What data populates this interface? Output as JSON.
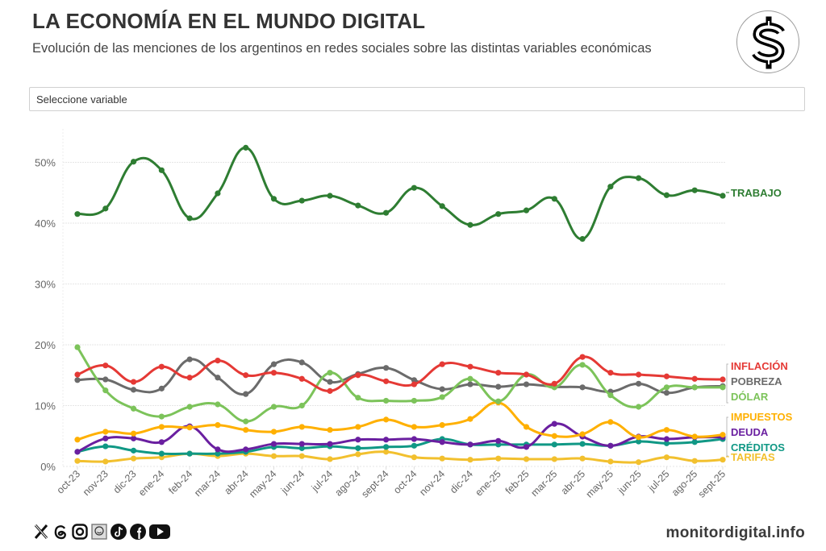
{
  "header": {
    "title": "LA ECONOMÍA EN EL MUNDO DIGITAL",
    "subtitle": "Evolución de las menciones de los argentinos en redes sociales sobre las distintas variables económicas",
    "logo_icon": "dollar-sign-icon"
  },
  "filter": {
    "label": "Seleccione variable"
  },
  "footer": {
    "url": "monitordigital.info",
    "social_icons": [
      "x-icon",
      "threads-icon",
      "instagram-icon",
      "monitor-icon",
      "tiktok-icon",
      "facebook-icon",
      "youtube-icon"
    ]
  },
  "chart_data": {
    "type": "line",
    "title": "",
    "xlabel": "",
    "ylabel": "",
    "ylim": [
      0,
      55
    ],
    "yticks": [
      0,
      10,
      20,
      30,
      40,
      50
    ],
    "ytick_labels": [
      "0%",
      "10%",
      "20%",
      "30%",
      "40%",
      "50%"
    ],
    "grid": true,
    "legend": "right-end-labels",
    "categories": [
      "oct-23",
      "nov-23",
      "dic-23",
      "ene-24",
      "feb-24",
      "mar-24",
      "abr-24",
      "may-24",
      "jun-24",
      "jul-24",
      "ago-24",
      "sept-24",
      "oct-24",
      "nov-24",
      "dic-24",
      "ene-25",
      "feb-25",
      "mar-25",
      "abr-25",
      "may-25",
      "jun-25",
      "jul-25",
      "ago-25",
      "sept-25"
    ],
    "series": [
      {
        "name": "TRABAJO",
        "color": "#2e7d32",
        "values": [
          41.5,
          42.4,
          50.1,
          48.7,
          40.8,
          44.9,
          52.4,
          44.0,
          43.7,
          44.5,
          42.9,
          41.7,
          45.8,
          42.8,
          39.7,
          41.5,
          42.1,
          44.0,
          37.4,
          46.0,
          47.4,
          44.6,
          45.4,
          44.5
        ]
      },
      {
        "name": "INFLACIÓN",
        "color": "#e53935",
        "values": [
          15.1,
          16.6,
          13.9,
          16.4,
          14.6,
          17.4,
          15.0,
          15.4,
          14.4,
          12.4,
          15.0,
          14.0,
          13.5,
          16.8,
          16.4,
          15.4,
          15.1,
          13.6,
          18.0,
          15.4,
          15.1,
          14.8,
          14.4,
          14.3
        ]
      },
      {
        "name": "POBREZA",
        "color": "#6b6b6b",
        "values": [
          14.2,
          14.3,
          12.6,
          12.8,
          17.6,
          14.6,
          11.9,
          16.8,
          17.1,
          13.9,
          15.2,
          16.2,
          14.2,
          12.7,
          13.5,
          13.1,
          13.5,
          13.1,
          13.0,
          12.3,
          13.6,
          12.1,
          13.0,
          13.2
        ]
      },
      {
        "name": "DÓLAR",
        "color": "#7cc35a",
        "values": [
          19.6,
          12.5,
          9.5,
          8.2,
          9.8,
          10.2,
          7.4,
          9.8,
          10.0,
          15.4,
          11.3,
          10.8,
          10.8,
          11.4,
          14.4,
          10.7,
          15.1,
          13.0,
          16.7,
          11.7,
          9.8,
          13.0,
          13.0,
          13.0
        ]
      },
      {
        "name": "IMPUESTOS",
        "color": "#ffb000",
        "values": [
          4.4,
          5.7,
          5.4,
          6.5,
          6.4,
          6.8,
          6.0,
          5.7,
          6.5,
          6.0,
          6.5,
          7.7,
          6.5,
          6.8,
          7.8,
          10.5,
          6.5,
          5.0,
          5.3,
          7.3,
          4.8,
          6.0,
          4.9,
          5.2
        ]
      },
      {
        "name": "DEUDA",
        "color": "#6a1fa0",
        "values": [
          2.4,
          4.6,
          4.6,
          4.0,
          6.6,
          2.8,
          2.8,
          3.7,
          3.7,
          3.7,
          4.4,
          4.4,
          4.5,
          4.0,
          3.6,
          4.2,
          3.2,
          7.0,
          4.9,
          3.4,
          4.9,
          4.5,
          4.8,
          4.8
        ]
      },
      {
        "name": "CRÉDITOS",
        "color": "#109885",
        "values": [
          2.4,
          3.3,
          2.6,
          2.1,
          2.1,
          2.1,
          2.4,
          3.2,
          3.0,
          3.3,
          3.0,
          3.2,
          3.4,
          4.5,
          3.6,
          3.6,
          3.6,
          3.6,
          3.7,
          3.4,
          4.1,
          3.8,
          4.0,
          4.5
        ]
      },
      {
        "name": "TARIFAS",
        "color": "#f2c02e",
        "values": [
          0.9,
          0.8,
          1.3,
          1.5,
          2.1,
          1.7,
          2.1,
          1.7,
          1.7,
          1.2,
          2.0,
          2.4,
          1.5,
          1.3,
          1.1,
          1.3,
          1.2,
          1.2,
          1.3,
          0.8,
          0.7,
          1.5,
          0.9,
          1.1
        ]
      }
    ]
  }
}
